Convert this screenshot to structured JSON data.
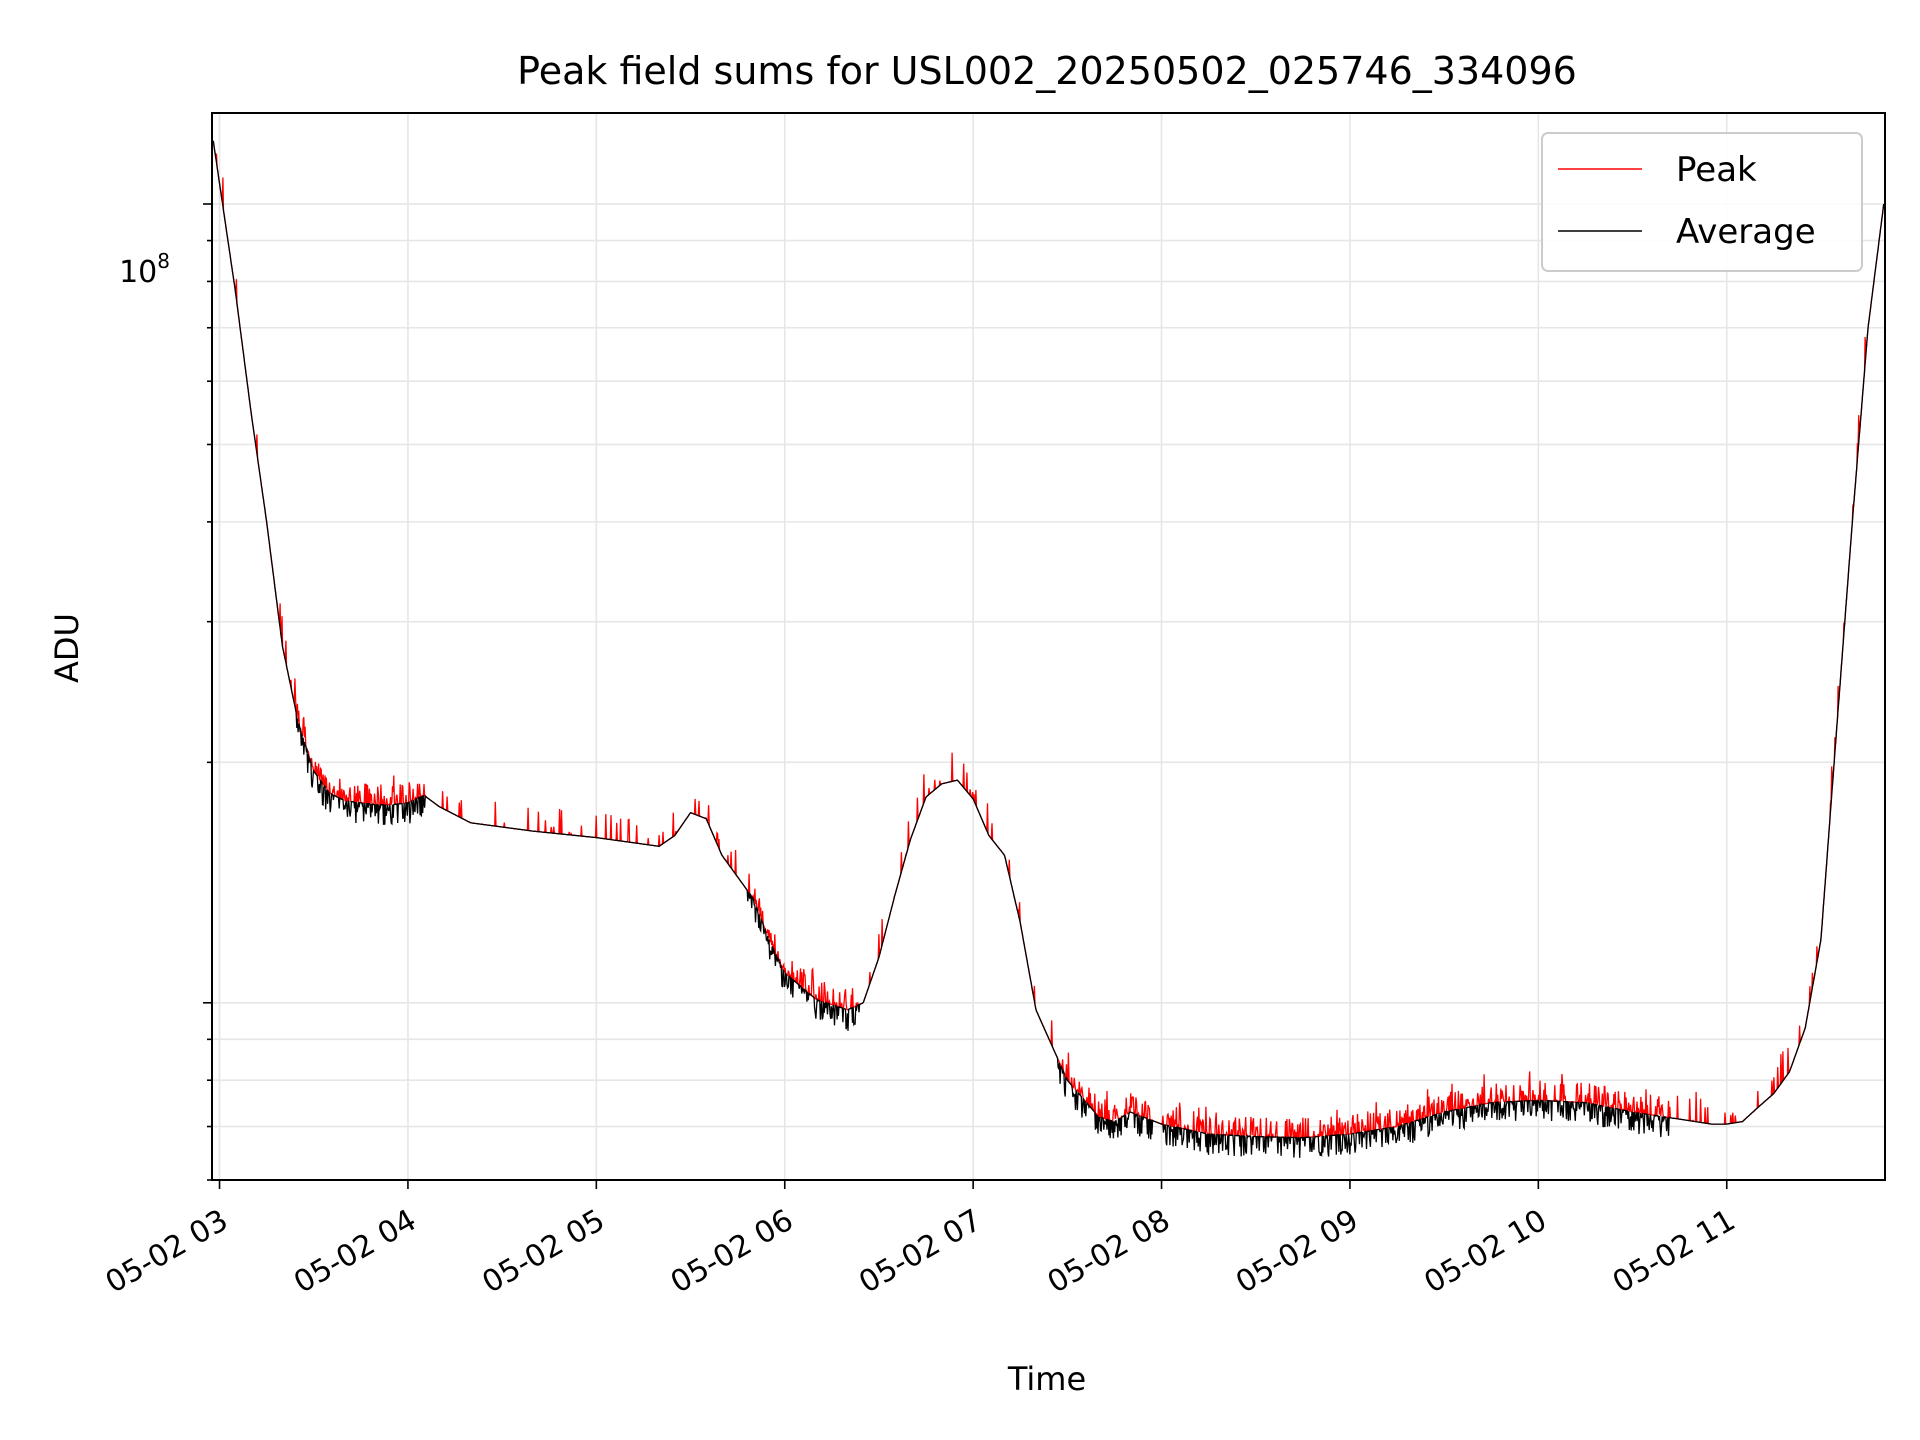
{
  "chart_data": {
    "type": "line",
    "title": "Peak field sums for USL002_20250502_025746_334096",
    "xlabel": "Time",
    "ylabel": "ADU",
    "yscale": "log",
    "ylim": [
      6000000,
      130000000
    ],
    "xlim_hours": [
      2.96,
      11.84
    ],
    "x_ticks": [
      {
        "label": "05-02 03",
        "hour": 3
      },
      {
        "label": "05-02 04",
        "hour": 4
      },
      {
        "label": "05-02 05",
        "hour": 5
      },
      {
        "label": "05-02 06",
        "hour": 6
      },
      {
        "label": "05-02 07",
        "hour": 7
      },
      {
        "label": "05-02 08",
        "hour": 8
      },
      {
        "label": "05-02 09",
        "hour": 9
      },
      {
        "label": "05-02 10",
        "hour": 10
      },
      {
        "label": "05-02 11",
        "hour": 11
      }
    ],
    "y_tick_label": {
      "base": "10",
      "exp": "8",
      "value": 100000000
    },
    "grid": true,
    "legend_position": "top-right",
    "series": [
      {
        "name": "Peak",
        "color": "#ff0000"
      },
      {
        "name": "Average",
        "color": "#000000"
      }
    ],
    "average_curve": {
      "time": [
        "02:58",
        "03:05",
        "03:10",
        "03:15",
        "03:20",
        "03:25",
        "03:30",
        "03:35",
        "03:40",
        "03:45",
        "03:50",
        "03:55",
        "04:00",
        "04:05",
        "04:10",
        "04:20",
        "04:40",
        "05:00",
        "05:15",
        "05:20",
        "05:25",
        "05:30",
        "05:35",
        "05:40",
        "05:50",
        "05:55",
        "06:00",
        "06:10",
        "06:20",
        "06:25",
        "06:30",
        "06:35",
        "06:40",
        "06:45",
        "06:50",
        "06:55",
        "07:00",
        "07:05",
        "07:10",
        "07:15",
        "07:20",
        "07:30",
        "07:40",
        "07:45",
        "07:50",
        "08:00",
        "08:15",
        "08:30",
        "08:45",
        "09:00",
        "09:15",
        "09:30",
        "09:45",
        "10:00",
        "10:15",
        "10:30",
        "10:45",
        "10:55",
        "11:00",
        "11:05",
        "11:10",
        "11:15",
        "11:20",
        "11:25",
        "11:30",
        "11:35",
        "11:40",
        "11:45",
        "11:50"
      ],
      "adu": [
        120000000,
        78000000,
        55000000,
        40000000,
        28000000,
        22500000,
        19500000,
        18300000,
        17900000,
        17800000,
        17700000,
        17700000,
        17800000,
        18200000,
        17600000,
        16800000,
        16400000,
        16100000,
        15800000,
        15700000,
        16200000,
        17300000,
        17000000,
        15300000,
        13500000,
        12000000,
        10900000,
        10100000,
        9800000,
        10000000,
        11400000,
        13600000,
        16000000,
        18100000,
        18800000,
        19000000,
        18000000,
        16200000,
        15300000,
        12600000,
        9800000,
        8000000,
        7200000,
        7100000,
        7300000,
        7050000,
        6850000,
        6800000,
        6780000,
        6850000,
        7000000,
        7300000,
        7500000,
        7550000,
        7500000,
        7300000,
        7150000,
        7050000,
        7050000,
        7100000,
        7400000,
        7700000,
        8200000,
        9300000,
        12000000,
        22000000,
        40000000,
        70000000,
        100000000
      ]
    }
  }
}
